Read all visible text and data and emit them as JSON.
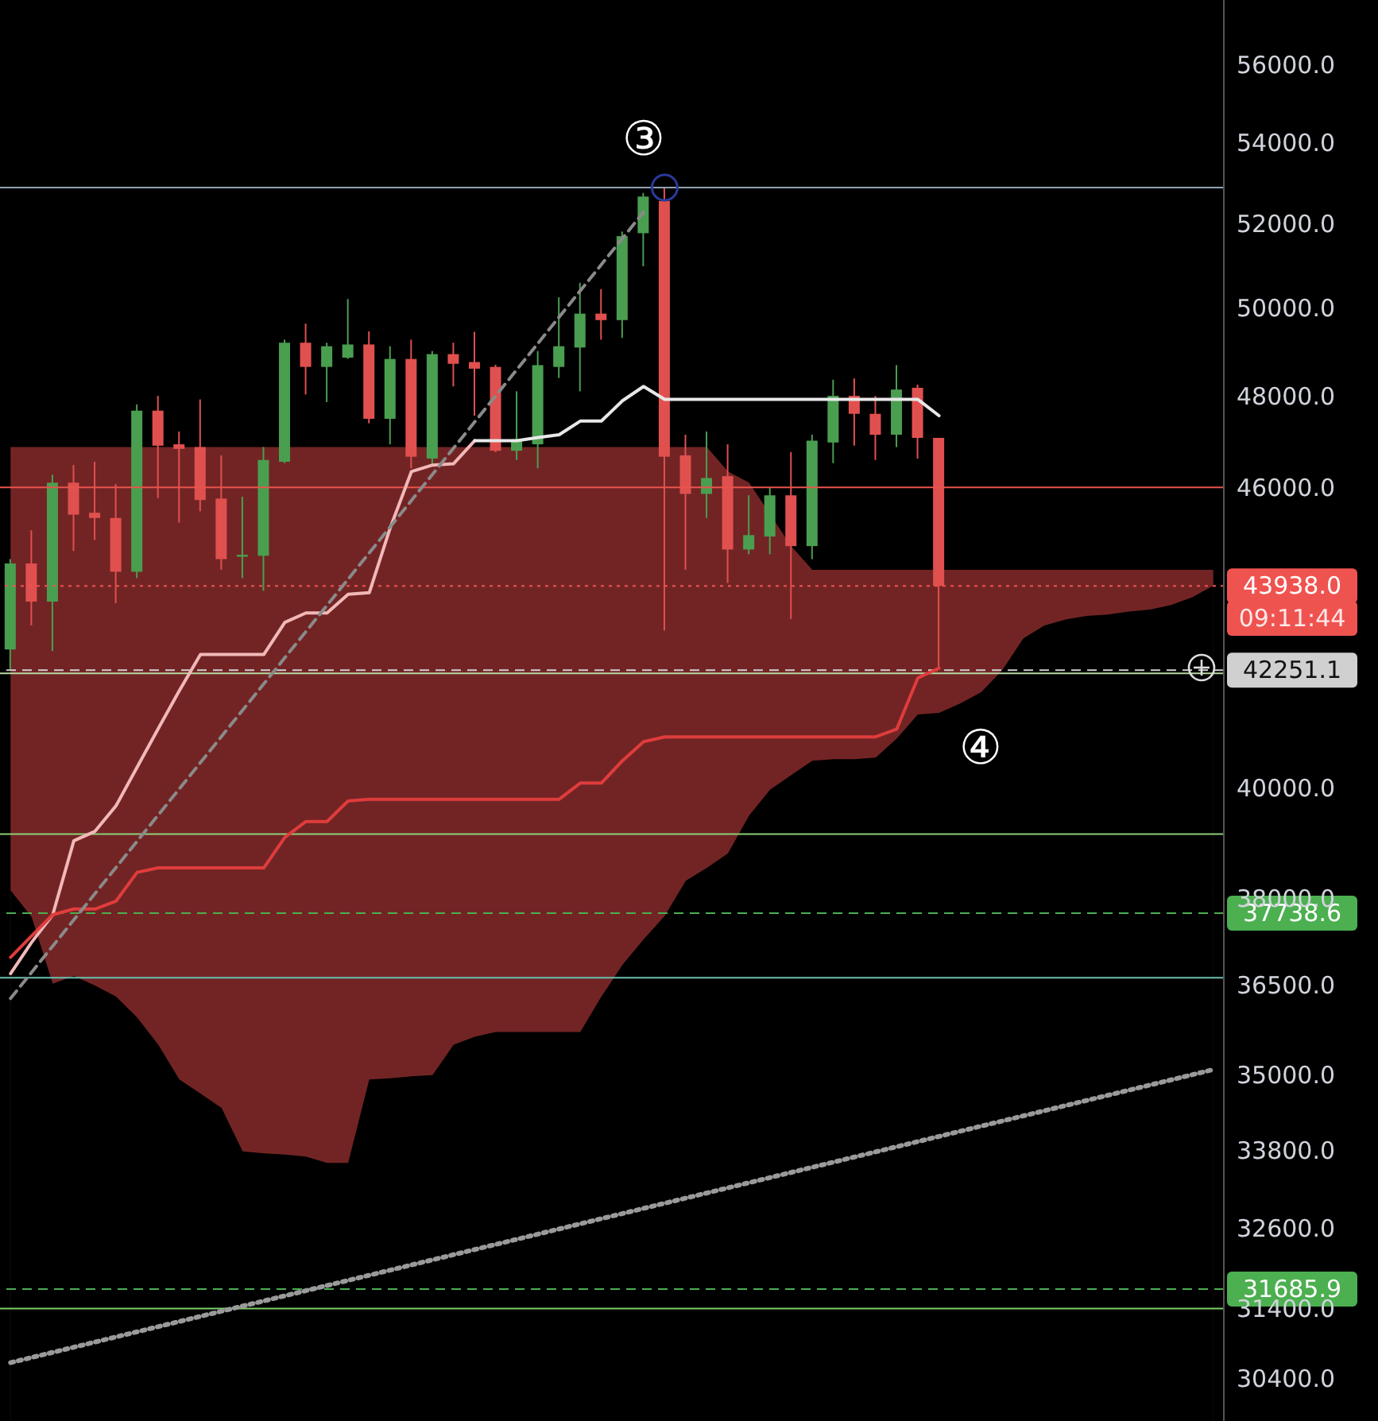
{
  "chart_data": {
    "type": "candlestick",
    "categories": [
      null,
      null,
      null,
      null,
      null,
      null,
      null,
      null,
      null,
      null,
      null,
      null,
      null,
      null,
      null,
      null,
      null,
      null,
      null,
      null,
      null,
      null,
      null,
      null,
      null,
      null,
      null,
      null,
      null,
      null,
      null,
      null,
      null,
      null,
      null,
      null,
      null,
      null,
      null,
      null,
      null,
      null,
      null,
      null,
      null,
      null,
      null,
      null,
      null,
      null,
      null,
      null,
      null,
      null,
      null,
      null,
      null,
      null
    ],
    "ohlc": [
      [
        42660,
        44490,
        42250,
        44400
      ],
      [
        44400,
        45090,
        43140,
        43620
      ],
      [
        43620,
        46270,
        42630,
        46100
      ],
      [
        46100,
        46480,
        44660,
        45420
      ],
      [
        45460,
        46550,
        44890,
        45350
      ],
      [
        45350,
        46070,
        43590,
        44230
      ],
      [
        44230,
        47810,
        44100,
        47670
      ],
      [
        47670,
        48000,
        45770,
        46900
      ],
      [
        46930,
        47210,
        45250,
        46830
      ],
      [
        46870,
        47920,
        45490,
        45730
      ],
      [
        45760,
        46690,
        44270,
        44490
      ],
      [
        44540,
        45800,
        44100,
        44580
      ],
      [
        44560,
        46870,
        43840,
        46590
      ],
      [
        46550,
        49270,
        46520,
        49200
      ],
      [
        49200,
        49640,
        48030,
        48650
      ],
      [
        48650,
        49200,
        47860,
        49120
      ],
      [
        48860,
        50210,
        48830,
        49160
      ],
      [
        49160,
        49460,
        47390,
        47490
      ],
      [
        47490,
        49120,
        46930,
        48830
      ],
      [
        48830,
        49270,
        46410,
        46660
      ],
      [
        46620,
        49010,
        46450,
        48940
      ],
      [
        48940,
        49200,
        48210,
        48720
      ],
      [
        48760,
        49450,
        47560,
        48610
      ],
      [
        48650,
        48700,
        46760,
        46790
      ],
      [
        46790,
        48100,
        46590,
        47040
      ],
      [
        46930,
        49010,
        46410,
        48690
      ],
      [
        48650,
        50250,
        48400,
        49120
      ],
      [
        49090,
        50590,
        48100,
        49870
      ],
      [
        49870,
        50440,
        49270,
        49720
      ],
      [
        49720,
        51810,
        49310,
        51700
      ],
      [
        51770,
        52750,
        50980,
        52660
      ],
      [
        52550,
        52880,
        43040,
        46660
      ],
      [
        46690,
        47140,
        44270,
        45860
      ],
      [
        45860,
        47210,
        45350,
        46200
      ],
      [
        46240,
        46930,
        44000,
        44690
      ],
      [
        44690,
        45830,
        44590,
        44990
      ],
      [
        44960,
        46000,
        44590,
        45830
      ],
      [
        45830,
        46760,
        43270,
        44760
      ],
      [
        44760,
        47140,
        44490,
        47010
      ],
      [
        46970,
        48360,
        46520,
        48000
      ],
      [
        48000,
        48390,
        46900,
        47600
      ],
      [
        47600,
        48000,
        46590,
        47140
      ],
      [
        47140,
        48690,
        46870,
        48140
      ],
      [
        48180,
        48250,
        46620,
        47070
      ],
      [
        47070,
        47070,
        42310,
        43938
      ],
      null,
      null,
      null,
      null,
      null,
      null,
      null,
      null,
      null,
      null,
      null,
      null,
      null
    ],
    "colors": [
      "#4a9e50",
      "#e0504f",
      "#4a9e50",
      "#e0504f",
      "#e0504f",
      "#e0504f",
      "#4a9e50",
      "#e0504f",
      "#e0504f",
      "#e0504f",
      "#e0504f",
      "#4a9e50",
      "#4a9e50",
      "#4a9e50",
      "#e0504f",
      "#4a9e50",
      "#4a9e50",
      "#e0504f",
      "#4a9e50",
      "#e0504f",
      "#4a9e50",
      "#e0504f",
      "#e0504f",
      "#e0504f",
      "#4a9e50",
      "#4a9e50",
      "#4a9e50",
      "#4a9e50",
      "#e0504f",
      "#4a9e50",
      "#4a9e50",
      "#e0504f",
      "#e0504f",
      "#4a9e50",
      "#e0504f",
      "#4a9e50",
      "#4a9e50",
      "#e0504f",
      "#4a9e50",
      "#4a9e50",
      "#e0504f",
      "#e0504f",
      "#4a9e50",
      "#e0504f",
      "#e0504f",
      null,
      null,
      null,
      null,
      null,
      null,
      null,
      null,
      null,
      null,
      null,
      null,
      null
    ],
    "series": [
      {
        "type": "area",
        "color": "#722424",
        "values": [
          46870,
          46870,
          46870,
          46870,
          46870,
          46870,
          null,
          46870,
          46870,
          46870,
          46870,
          46870,
          46870,
          null,
          46870,
          46870,
          46870,
          46870,
          46870,
          null,
          null,
          46870,
          46870,
          null,
          46870,
          46870,
          46870,
          46870,
          46870,
          46870,
          46870,
          null,
          46870,
          46870,
          46340,
          46100,
          null,
          44760,
          44270,
          44270,
          44270,
          44270,
          44270,
          44270,
          null,
          44270,
          44270,
          44270,
          44270,
          44270,
          44270,
          44270,
          44270,
          44270,
          44270,
          44270,
          44270,
          44270
        ]
      },
      {
        "type": "area",
        "color": "#000000",
        "values": [
          38140,
          37670,
          36520,
          36650,
          36490,
          36300,
          35950,
          35500,
          34930,
          34700,
          34470,
          33780,
          33750,
          33730,
          33700,
          33600,
          33600,
          34930,
          34950,
          34980,
          35000,
          35500,
          35630,
          35710,
          35710,
          35710,
          35710,
          35710,
          36300,
          36840,
          37280,
          37690,
          38310,
          38540,
          38800,
          39490,
          39970,
          40240,
          40510,
          40540,
          40540,
          40570,
          40930,
          41390,
          41420,
          41600,
          41820,
          42250,
          42880,
          43140,
          43260,
          43330,
          43360,
          43420,
          43460,
          43550,
          43710,
          43940
        ]
      },
      {
        "type": "line",
        "color": "#f2b8b8",
        "values": [
          36690,
          37230,
          37710,
          39030,
          39200,
          39670,
          40390,
          41120,
          41850,
          42560,
          42560,
          42560,
          42560,
          43200,
          43390,
          43390,
          43770,
          43800,
          45150,
          46340,
          46480,
          46510,
          47010,
          null,
          null,
          null,
          null,
          null,
          null,
          null,
          null,
          null,
          null,
          null,
          null,
          null,
          null,
          null,
          null,
          null,
          null,
          null,
          null,
          null,
          null,
          null,
          null,
          null,
          null,
          null,
          null,
          null,
          null,
          null,
          null,
          null,
          null,
          null
        ]
      },
      {
        "type": "line",
        "color": "#e8e8e8",
        "values": [
          null,
          null,
          null,
          null,
          null,
          null,
          null,
          null,
          null,
          null,
          null,
          null,
          null,
          null,
          null,
          null,
          null,
          null,
          null,
          null,
          null,
          null,
          47010,
          47010,
          47010,
          47080,
          47140,
          47440,
          47440,
          47890,
          48210,
          47920,
          47920,
          47920,
          47920,
          47920,
          47920,
          47920,
          47920,
          47920,
          47920,
          47920,
          47920,
          47920,
          47560,
          null,
          null,
          null,
          null,
          null,
          null,
          null,
          null,
          null,
          null,
          null,
          null,
          null
        ]
      },
      {
        "type": "line",
        "color": "#e03c3c",
        "values": [
          36970,
          37340,
          37710,
          37810,
          37810,
          37950,
          38460,
          38540,
          38540,
          38540,
          38540,
          38540,
          38540,
          39090,
          39380,
          39380,
          39760,
          39790,
          39790,
          39790,
          39790,
          39790,
          39790,
          39790,
          39790,
          39790,
          39790,
          40090,
          40090,
          40510,
          40870,
          40960,
          40960,
          40960,
          40960,
          40960,
          40960,
          40960,
          40960,
          40960,
          40960,
          40960,
          41110,
          42100,
          42290,
          null,
          null,
          null,
          null,
          null,
          null,
          null,
          null,
          null,
          null,
          null,
          null,
          null
        ]
      },
      {
        "type": "line",
        "color": "#8a8a8a",
        "line_style": "dashed",
        "values": [
          36270,
          null,
          null,
          null,
          null,
          null,
          null,
          null,
          null,
          null,
          null,
          null,
          null,
          null,
          null,
          null,
          null,
          null,
          null,
          null,
          null,
          null,
          null,
          null,
          null,
          null,
          null,
          null,
          null,
          null,
          52280,
          null,
          null,
          null,
          null,
          null,
          null,
          null,
          null,
          null,
          null,
          null,
          null,
          null,
          null,
          null,
          null,
          null,
          null,
          null,
          null,
          null,
          null,
          null,
          null,
          null,
          null,
          null
        ]
      },
      {
        "type": "line",
        "color": "#9a9a9a",
        "line_style": "dotted",
        "values": [
          30620,
          null,
          null,
          null,
          null,
          null,
          null,
          null,
          null,
          null,
          null,
          null,
          null,
          null,
          null,
          null,
          null,
          null,
          null,
          null,
          null,
          null,
          null,
          null,
          null,
          null,
          null,
          null,
          null,
          null,
          null,
          null,
          null,
          null,
          null,
          null,
          null,
          null,
          null,
          null,
          null,
          null,
          null,
          null,
          null,
          null,
          null,
          null,
          null,
          null,
          null,
          null,
          null,
          null,
          null,
          null,
          null,
          35090
        ]
      },
      {
        "type": "scatter",
        "color": "#2a3a9a",
        "marker": "circle",
        "values": [
          null,
          null,
          null,
          null,
          null,
          null,
          null,
          null,
          null,
          null,
          null,
          null,
          null,
          null,
          null,
          null,
          null,
          null,
          null,
          null,
          null,
          null,
          null,
          null,
          null,
          null,
          null,
          null,
          null,
          null,
          null,
          52880,
          null,
          null,
          null,
          null,
          null,
          null,
          null,
          null,
          null,
          null,
          null,
          null,
          null,
          null,
          null,
          null,
          null,
          null,
          null,
          null,
          null,
          null,
          null,
          null,
          null,
          null
        ]
      }
    ],
    "log": "y",
    "ylim": [
      29800,
      57700
    ],
    "yticks": [
      {
        "value": 56000,
        "label": "56000.0"
      },
      {
        "value": 54000,
        "label": "54000.0"
      },
      {
        "value": 52000,
        "label": "52000.0"
      },
      {
        "value": 50000,
        "label": "50000.0"
      },
      {
        "value": 48000,
        "label": "48000.0"
      },
      {
        "value": 46000,
        "label": "46000.0"
      },
      {
        "value": 40000,
        "label": "40000.0"
      },
      {
        "value": 38000,
        "label": "38000.0"
      },
      {
        "value": 36500,
        "label": "36500.0"
      },
      {
        "value": 35000,
        "label": "35000.0"
      },
      {
        "value": 33800,
        "label": "33800.0"
      },
      {
        "value": 32600,
        "label": "32600.0"
      },
      {
        "value": 31400,
        "label": "31400.0"
      },
      {
        "value": 30400,
        "label": "30400.0"
      }
    ],
    "tick_labels": "y",
    "ref_lines": [
      {
        "axis": "y",
        "value": 52880,
        "color": "#8fa3b3"
      },
      {
        "axis": "y",
        "value": 46000,
        "color": "#e8544c"
      },
      {
        "axis": "y",
        "value": 43938,
        "label": "43938.0",
        "color": "#ef5350",
        "line_style": "dotted"
      },
      {
        "axis": "y",
        "value": 42251.1,
        "label": "42251.1",
        "color": "#d0d0d0",
        "line_style": "dashed"
      },
      {
        "axis": "y",
        "value": 42190,
        "color": "#b8d8a0"
      },
      {
        "axis": "y",
        "value": 39150,
        "color": "#8fcf7a"
      },
      {
        "axis": "y",
        "value": 37738.6,
        "label": "37738.6",
        "color": "#4caf50",
        "line_style": "dashed"
      },
      {
        "axis": "y",
        "value": 36620,
        "color": "#6ac0b0"
      },
      {
        "axis": "y",
        "value": 31685.9,
        "label": "31685.9",
        "color": "#4caf50",
        "line_style": "dashed"
      },
      {
        "axis": "y",
        "value": 31400,
        "color": "#7ccf6a"
      }
    ],
    "annotations": [
      "③",
      "④",
      "09:11:44"
    ]
  }
}
